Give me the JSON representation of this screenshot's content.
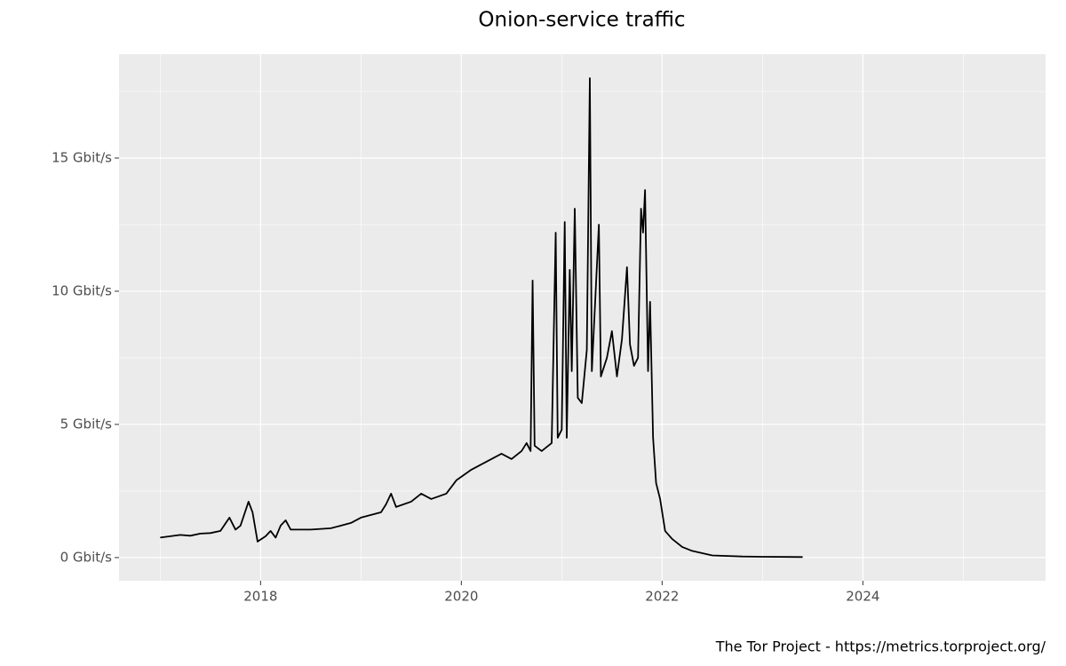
{
  "chart_data": {
    "type": "line",
    "title": "Onion-service traffic",
    "caption": "The Tor Project - https://metrics.torproject.org/",
    "color": "#000000",
    "grid": true,
    "x": [
      2017.0,
      2017.1,
      2017.2,
      2017.3,
      2017.4,
      2017.5,
      2017.6,
      2017.69,
      2017.75,
      2017.8,
      2017.88,
      2017.92,
      2017.97,
      2018.05,
      2018.1,
      2018.15,
      2018.2,
      2018.25,
      2018.3,
      2018.5,
      2018.7,
      2018.9,
      2019.0,
      2019.2,
      2019.25,
      2019.3,
      2019.35,
      2019.5,
      2019.6,
      2019.7,
      2019.85,
      2019.95,
      2020.1,
      2020.2,
      2020.3,
      2020.4,
      2020.5,
      2020.6,
      2020.65,
      2020.69,
      2020.71,
      2020.73,
      2020.8,
      2020.9,
      2020.94,
      2020.96,
      2021.0,
      2021.03,
      2021.05,
      2021.08,
      2021.1,
      2021.13,
      2021.16,
      2021.2,
      2021.25,
      2021.28,
      2021.3,
      2021.37,
      2021.39,
      2021.45,
      2021.5,
      2021.55,
      2021.6,
      2021.65,
      2021.68,
      2021.72,
      2021.76,
      2021.79,
      2021.81,
      2021.83,
      2021.86,
      2021.88,
      2021.91,
      2021.94,
      2021.98,
      2022.03,
      2022.1,
      2022.2,
      2022.3,
      2022.5,
      2022.8,
      2023.0,
      2023.4
    ],
    "values": [
      0.75,
      0.8,
      0.85,
      0.82,
      0.9,
      0.92,
      1.0,
      1.5,
      1.05,
      1.2,
      2.1,
      1.7,
      0.6,
      0.8,
      1.0,
      0.75,
      1.2,
      1.4,
      1.05,
      1.05,
      1.1,
      1.3,
      1.5,
      1.7,
      2.0,
      2.4,
      1.9,
      2.1,
      2.4,
      2.2,
      2.4,
      2.9,
      3.3,
      3.5,
      3.7,
      3.9,
      3.7,
      4.0,
      4.3,
      4.0,
      10.4,
      4.2,
      4.0,
      4.3,
      12.2,
      4.5,
      4.8,
      12.6,
      4.5,
      10.8,
      7.0,
      13.1,
      6.0,
      5.8,
      7.8,
      18.0,
      7.0,
      12.5,
      6.8,
      7.5,
      8.5,
      6.8,
      8.2,
      10.9,
      8.0,
      7.2,
      7.5,
      13.1,
      12.2,
      13.8,
      7.0,
      9.6,
      4.5,
      2.8,
      2.2,
      1.0,
      0.7,
      0.4,
      0.25,
      0.08,
      0.04,
      0.03,
      0.02
    ],
    "xlim": [
      2016.59,
      2025.82
    ],
    "xticks": [
      2018,
      2020,
      2022,
      2024
    ],
    "minor_xticks": [
      2017,
      2019,
      2021,
      2023,
      2025
    ],
    "ylim": [
      -0.87,
      18.9
    ],
    "yticks": [
      {
        "value": 0,
        "label": "0 Gbit/s"
      },
      {
        "value": 5,
        "label": "5 Gbit/s"
      },
      {
        "value": 10,
        "label": "10 Gbit/s"
      },
      {
        "value": 15,
        "label": "15 Gbit/s"
      }
    ],
    "minor_yticks": [
      2.5,
      7.5,
      12.5,
      17.5
    ]
  }
}
